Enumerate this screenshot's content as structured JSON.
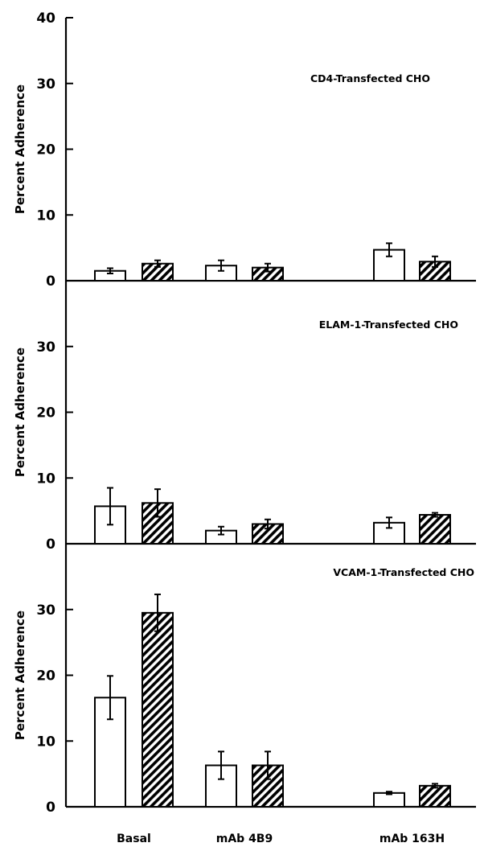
{
  "chart_data": {
    "type": "bar",
    "categories": [
      "Basal",
      "mAb 4B9",
      "mAb 163H"
    ],
    "panels": [
      {
        "title": "CD4-Transfected CHO",
        "ylabel": "Percent Adherence",
        "ylim": [
          0,
          40
        ],
        "yticks": [
          0,
          10,
          20,
          30,
          40
        ],
        "series": [
          {
            "style": "open",
            "values": [
              1.5,
              2.3,
              4.7
            ],
            "errors": [
              0.4,
              0.8,
              1.0
            ]
          },
          {
            "style": "hatched",
            "values": [
              2.6,
              2.0,
              2.9
            ],
            "errors": [
              0.5,
              0.6,
              0.8
            ]
          }
        ]
      },
      {
        "title": "ELAM-1-Transfected CHO",
        "ylabel": "Percent Adherence",
        "ylim": [
          0,
          40
        ],
        "yticks": [
          0,
          10,
          20,
          30
        ],
        "series": [
          {
            "style": "open",
            "values": [
              5.7,
              2.0,
              3.2
            ],
            "errors": [
              2.8,
              0.6,
              0.8
            ]
          },
          {
            "style": "hatched",
            "values": [
              6.2,
              3.0,
              4.4
            ],
            "errors": [
              2.1,
              0.7,
              0.3
            ]
          }
        ]
      },
      {
        "title": "VCAM-1-Transfected CHO",
        "ylabel": "Percent Adherence",
        "ylim": [
          0,
          40
        ],
        "yticks": [
          0,
          10,
          20,
          30
        ],
        "series": [
          {
            "style": "open",
            "values": [
              16.6,
              6.3,
              2.1
            ],
            "errors": [
              3.3,
              2.1,
              0.2
            ]
          },
          {
            "style": "hatched",
            "values": [
              29.5,
              6.3,
              3.2
            ],
            "errors": [
              2.8,
              2.1,
              0.3
            ]
          }
        ]
      }
    ],
    "grid": false,
    "legend": "none"
  }
}
